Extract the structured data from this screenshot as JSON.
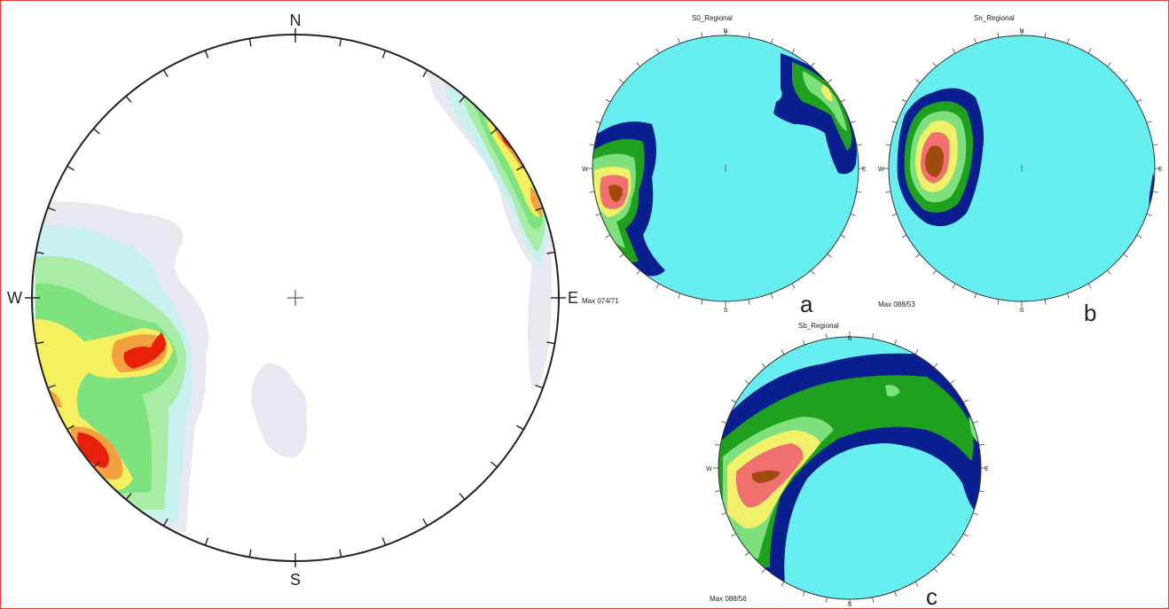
{
  "main_net": {
    "north_label": "N",
    "south_label": "S",
    "east_label": "E",
    "west_label": "W"
  },
  "net_a": {
    "title": "S0_Regional",
    "north_label": "N",
    "south_label": "S",
    "east_label": "E",
    "west_label": "W",
    "max_label": "Max 074/71",
    "panel_letter": "a"
  },
  "net_b": {
    "title": "Sn_Regional",
    "north_label": "N",
    "south_label": "S",
    "east_label": "E",
    "west_label": "W",
    "max_label": "Max 088/53",
    "panel_letter": "b"
  },
  "net_c": {
    "title": "Sb_Regional",
    "north_label": "N",
    "south_label": "S",
    "east_label": "E",
    "west_label": "W",
    "max_label": "Max 088/56",
    "panel_letter": "c"
  },
  "colors": {
    "frame_border": "#e23a3a",
    "net_fill": "#66eef0",
    "contour_navy": "#0a1f8f",
    "contour_green": "#1fa01f",
    "contour_lightgreen": "#7de07d",
    "contour_yellow": "#f0f06a",
    "contour_salmon": "#f07070",
    "contour_core": "#a04a10",
    "main_grey": "#e6e9f0",
    "main_cyan": "#c8f0ee",
    "main_lightgreen": "#a8eca8",
    "main_green": "#7ee27e",
    "main_yellow": "#f4f060",
    "main_orange": "#f4a040",
    "main_red": "#e8200a"
  }
}
